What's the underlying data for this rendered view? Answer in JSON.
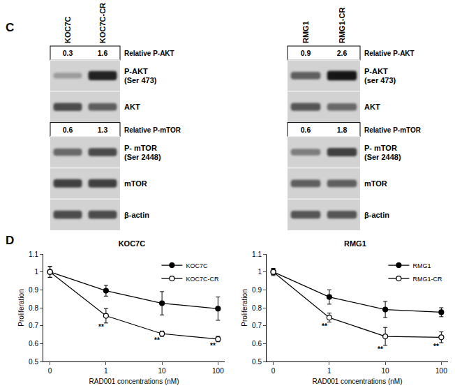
{
  "panel_labels": [
    "C",
    "D"
  ],
  "blots": [
    {
      "lanes": [
        "KOC7C",
        "KOC7C-CR"
      ],
      "rows": [
        {
          "kind": "relative",
          "label": "Relative P-AKT",
          "values": [
            0.3,
            1.6
          ]
        },
        {
          "kind": "band",
          "label": [
            "P-AKT",
            "(Ser 473)"
          ],
          "intensity": [
            0.3,
            0.9
          ]
        },
        {
          "kind": "band",
          "label": [
            "AKT"
          ],
          "intensity": [
            0.7,
            0.6
          ]
        },
        {
          "kind": "relative",
          "label": "Relative P-mTOR",
          "values": [
            0.6,
            1.3
          ]
        },
        {
          "kind": "band",
          "label": [
            "P- mTOR",
            "(Ser 2448)"
          ],
          "intensity": [
            0.55,
            0.7
          ]
        },
        {
          "kind": "band",
          "label": [
            "mTOR"
          ],
          "intensity": [
            0.75,
            0.75
          ]
        },
        {
          "kind": "band",
          "label": [
            "β-actin"
          ],
          "intensity": [
            0.7,
            0.7
          ]
        }
      ]
    },
    {
      "lanes": [
        "RMG1",
        "RMG1-CR"
      ],
      "rows": [
        {
          "kind": "relative",
          "label": "Relative P-AKT",
          "values": [
            0.9,
            2.6
          ]
        },
        {
          "kind": "band",
          "label": [
            "P-AKT",
            "(ser 473)"
          ],
          "intensity": [
            0.6,
            0.95
          ]
        },
        {
          "kind": "band",
          "label": [
            "AKT"
          ],
          "intensity": [
            0.65,
            0.55
          ]
        },
        {
          "kind": "relative",
          "label": "Relative P-mTOR",
          "values": [
            0.6,
            1.8
          ]
        },
        {
          "kind": "band",
          "label": [
            "P- mTOR",
            "(Ser 2448)"
          ],
          "intensity": [
            0.45,
            0.75
          ]
        },
        {
          "kind": "band",
          "label": [
            "mTOR"
          ],
          "intensity": [
            0.6,
            0.6
          ]
        },
        {
          "kind": "band",
          "label": [
            "β-actin"
          ],
          "intensity": [
            0.65,
            0.65
          ]
        }
      ]
    }
  ],
  "chart_data": [
    {
      "type": "line",
      "title": "KOC7C",
      "x_label": "RAD001 concentrations (nM)",
      "y_label": "Proliferation",
      "categories": [
        "0",
        "1",
        "10",
        "100"
      ],
      "ylim": [
        0.5,
        1.1
      ],
      "yticks": [
        0.5,
        0.6,
        0.7,
        0.8,
        0.9,
        1,
        1.1
      ],
      "grid": false,
      "legend": "upper right",
      "series": [
        {
          "name": "KOC7C",
          "color": "#000000",
          "marker": "filled_circle",
          "values": [
            1.0,
            0.895,
            0.825,
            0.795
          ],
          "errors": [
            0.03,
            0.03,
            0.065,
            0.065
          ]
        },
        {
          "name": "KOC7C-CR",
          "color": "#000000",
          "marker": "open_circle",
          "values": [
            1.0,
            0.755,
            0.655,
            0.625
          ],
          "errors": [
            0.03,
            0.04,
            0.015,
            0.015
          ],
          "significance": [
            null,
            "**",
            "**",
            "**"
          ]
        }
      ]
    },
    {
      "type": "line",
      "title": "RMG1",
      "x_label": "RAD001 concentrations (nM)",
      "y_label": "Proliferation",
      "categories": [
        "0",
        "1",
        "10",
        "100"
      ],
      "ylim": [
        0.5,
        1.1
      ],
      "yticks": [
        0.5,
        0.6,
        0.7,
        0.8,
        0.9,
        1,
        1.1
      ],
      "grid": false,
      "legend": "upper right",
      "series": [
        {
          "name": "RMG1",
          "color": "#000000",
          "marker": "filled_circle",
          "values": [
            1.0,
            0.86,
            0.79,
            0.775
          ],
          "errors": [
            0.015,
            0.04,
            0.045,
            0.025
          ]
        },
        {
          "name": "RMG1-CR",
          "color": "#000000",
          "marker": "open_circle",
          "values": [
            1.0,
            0.745,
            0.64,
            0.635
          ],
          "errors": [
            0.02,
            0.025,
            0.05,
            0.03
          ],
          "significance": [
            null,
            "**",
            "**",
            "**"
          ]
        }
      ]
    }
  ]
}
